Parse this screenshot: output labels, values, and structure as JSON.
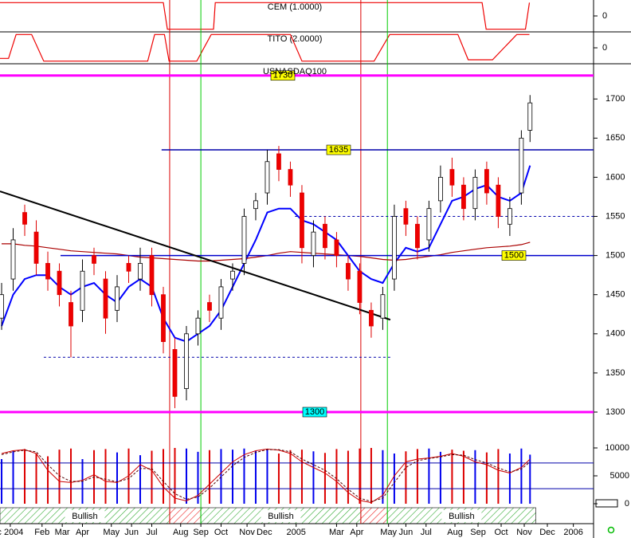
{
  "chart_data": {
    "type": "candlestick",
    "title": "USNASDAQ100",
    "xlim": [
      -0.28,
      102.5
    ],
    "xticks": [
      {
        "value": 1.5,
        "label": "c 2004"
      },
      {
        "value": 7,
        "label": "Feb"
      },
      {
        "value": 10.5,
        "label": "Mar"
      },
      {
        "value": 14,
        "label": "Apr"
      },
      {
        "value": 19,
        "label": "May"
      },
      {
        "value": 22.5,
        "label": "Jun"
      },
      {
        "value": 26,
        "label": "Jul"
      },
      {
        "value": 31,
        "label": "Aug"
      },
      {
        "value": 34.5,
        "label": "Sep"
      },
      {
        "value": 38,
        "label": "Oct"
      },
      {
        "value": 42.5,
        "label": "Nov"
      },
      {
        "value": 45.5,
        "label": "Dec"
      },
      {
        "value": 51,
        "label": "2005"
      },
      {
        "value": 58,
        "label": "Mar"
      },
      {
        "value": 61.5,
        "label": "Apr"
      },
      {
        "value": 67,
        "label": "May"
      },
      {
        "value": 70,
        "label": "Jun"
      },
      {
        "value": 73.5,
        "label": "Jul"
      },
      {
        "value": 78.5,
        "label": "Aug"
      },
      {
        "value": 82.5,
        "label": "Sep"
      },
      {
        "value": 86.5,
        "label": "Oct"
      },
      {
        "value": 90.5,
        "label": "Nov"
      },
      {
        "value": 94.5,
        "label": "Dec"
      },
      {
        "value": 99,
        "label": "2006"
      }
    ],
    "ylim": [
      1271.5,
      1745
    ],
    "yticks": [
      1300,
      1350,
      1400,
      1450,
      1500,
      1550,
      1600,
      1650,
      1700
    ],
    "x": [
      0,
      2,
      4,
      6,
      8,
      10,
      12,
      14,
      16,
      18,
      20,
      22,
      24,
      26,
      28,
      30,
      32,
      34,
      36,
      38,
      40,
      42,
      44,
      46,
      48,
      50,
      52,
      54,
      56,
      58,
      60,
      62,
      64,
      66,
      68,
      70,
      72,
      74,
      76,
      78,
      80,
      82,
      84,
      86,
      88,
      90,
      91.5
    ],
    "open": [
      1420,
      1470,
      1555,
      1530,
      1490,
      1480,
      1440,
      1430,
      1500,
      1470,
      1430,
      1490,
      1470,
      1500,
      1450,
      1380,
      1330,
      1400,
      1440,
      1420,
      1470,
      1490,
      1560,
      1580,
      1630,
      1610,
      1580,
      1500,
      1540,
      1520,
      1490,
      1480,
      1430,
      1420,
      1470,
      1560,
      1540,
      1520,
      1570,
      1610,
      1590,
      1560,
      1610,
      1590,
      1540,
      1580,
      1660
    ],
    "high": [
      1465,
      1535,
      1565,
      1545,
      1505,
      1490,
      1455,
      1495,
      1510,
      1480,
      1475,
      1500,
      1510,
      1510,
      1460,
      1395,
      1410,
      1430,
      1450,
      1470,
      1490,
      1560,
      1580,
      1635,
      1640,
      1620,
      1590,
      1545,
      1550,
      1530,
      1500,
      1490,
      1440,
      1460,
      1565,
      1570,
      1550,
      1570,
      1615,
      1625,
      1600,
      1610,
      1620,
      1600,
      1575,
      1660,
      1705
    ],
    "low": [
      1405,
      1455,
      1525,
      1475,
      1455,
      1435,
      1370,
      1415,
      1475,
      1400,
      1415,
      1465,
      1455,
      1435,
      1375,
      1305,
      1315,
      1385,
      1415,
      1405,
      1455,
      1475,
      1545,
      1565,
      1595,
      1575,
      1490,
      1485,
      1495,
      1485,
      1455,
      1425,
      1395,
      1405,
      1455,
      1525,
      1495,
      1505,
      1555,
      1575,
      1545,
      1545,
      1565,
      1535,
      1525,
      1565,
      1645
    ],
    "close": [
      1450,
      1520,
      1540,
      1490,
      1470,
      1450,
      1410,
      1480,
      1490,
      1420,
      1460,
      1480,
      1490,
      1450,
      1390,
      1320,
      1400,
      1420,
      1430,
      1460,
      1480,
      1550,
      1570,
      1620,
      1610,
      1590,
      1510,
      1530,
      1510,
      1500,
      1470,
      1440,
      1410,
      1450,
      1550,
      1540,
      1510,
      1560,
      1600,
      1590,
      1560,
      1600,
      1580,
      1550,
      1560,
      1650,
      1695
    ],
    "moving_averages": [
      {
        "color": "#0000ff",
        "values": [
          1410,
          1450,
          1470,
          1475,
          1475,
          1460,
          1450,
          1460,
          1465,
          1450,
          1440,
          1460,
          1470,
          1460,
          1420,
          1395,
          1390,
          1400,
          1410,
          1430,
          1460,
          1490,
          1520,
          1555,
          1560,
          1560,
          1545,
          1540,
          1530,
          1520,
          1500,
          1480,
          1470,
          1465,
          1490,
          1510,
          1505,
          1510,
          1540,
          1570,
          1575,
          1585,
          1590,
          1575,
          1570,
          1580,
          1615
        ]
      },
      {
        "color": "#aa0000",
        "values": [
          1515,
          1515,
          1513,
          1512,
          1510,
          1508,
          1506,
          1505,
          1504,
          1503,
          1502,
          1500,
          1498,
          1497,
          1496,
          1495,
          1494,
          1493,
          1493,
          1494,
          1495,
          1496,
          1498,
          1500,
          1503,
          1505,
          1504,
          1503,
          1502,
          1501,
          1500,
          1499,
          1497,
          1495,
          1494,
          1495,
          1497,
          1499,
          1501,
          1504,
          1506,
          1508,
          1510,
          1511,
          1512,
          1514,
          1517
        ]
      }
    ],
    "levels": [
      {
        "value": 1730,
        "label": "1730",
        "color": "#ff00ff",
        "from": -0.28
      },
      {
        "value": 1635,
        "label": "1635",
        "color": "#0000aa",
        "from": 27.7
      },
      {
        "value": 1500,
        "label": "1500",
        "color": "#0000cc",
        "from": 10.2
      },
      {
        "value": 1300,
        "label": "1300",
        "color": "#ff00ff",
        "from": -0.28
      }
    ],
    "dashed_levels": [
      {
        "value": 1550,
        "from": 50.8,
        "to": 102.5
      },
      {
        "value": 1370,
        "from": 7.3,
        "to": 67.3
      }
    ],
    "trendline": {
      "from": [
        -0.28,
        1582
      ],
      "to": [
        67.3,
        1418
      ]
    },
    "red_markers": [
      29.1,
      62.2
    ],
    "green_markers": [
      34.5,
      66.8
    ],
    "volume": {
      "ylim": [
        -714,
        12429
      ],
      "yticks": [
        0,
        5000,
        10000
      ],
      "ref_lines": [
        7300,
        2700
      ],
      "values": [
        8000,
        9500,
        9800,
        9000,
        8500,
        9700,
        9900,
        8000,
        9600,
        9800,
        9200,
        9900,
        8700,
        9500,
        9800,
        10000,
        9900,
        9300,
        9600,
        9800,
        9700,
        9900,
        9500,
        9800,
        9000,
        9600,
        9700,
        9400,
        9100,
        9800,
        9500,
        9900,
        10000,
        9600,
        9000,
        9400,
        9800,
        9900,
        9300,
        9700,
        9500,
        9600,
        9200,
        9800,
        9000,
        9900,
        8800
      ],
      "oscillator": [
        9000,
        9500,
        9700,
        9000,
        6000,
        4000,
        3800,
        4200,
        5200,
        4000,
        3800,
        5000,
        7000,
        6000,
        3000,
        1000,
        500,
        1500,
        3500,
        5500,
        7500,
        8800,
        9500,
        9800,
        9600,
        9000,
        7500,
        6500,
        5500,
        4000,
        2000,
        600,
        200,
        1500,
        5000,
        7500,
        8000,
        8200,
        8500,
        9000,
        8500,
        7500,
        7000,
        6000,
        5500,
        6500,
        8000
      ],
      "signal": [
        8800,
        9300,
        9600,
        9300,
        7000,
        5000,
        4000,
        4000,
        4800,
        4400,
        3900,
        4500,
        6300,
        6300,
        4000,
        1800,
        800,
        1200,
        2800,
        4800,
        6800,
        8300,
        9200,
        9700,
        9700,
        9300,
        8000,
        7000,
        6000,
        4500,
        2600,
        1000,
        400,
        1000,
        3800,
        6500,
        7700,
        8100,
        8400,
        8800,
        8700,
        7900,
        7300,
        6400,
        5700,
        6200,
        7500
      ]
    },
    "indicators": [
      {
        "title": "CEM (1.0000)",
        "ylim": [
          -1.2,
          1.2
        ],
        "yticks": [
          0
        ],
        "x": [
          -0.28,
          28,
          28.7,
          36.7,
          37,
          83.2,
          83.9,
          90.7,
          91.4
        ],
        "values": [
          1,
          1,
          -1,
          -1,
          1,
          1,
          -1,
          -1,
          1
        ]
      },
      {
        "title": "TITO (2.0000)",
        "ylim": [
          -1.2,
          1.2
        ],
        "yticks": [
          0
        ],
        "x": [
          -0.28,
          1.2,
          2.5,
          5.2,
          7.3,
          25.3,
          26.5,
          28.2,
          29,
          33.8,
          36.3,
          50,
          52,
          62,
          64.5,
          67.2,
          79,
          80.8,
          85,
          89.2,
          91.4
        ],
        "values": [
          -0.8,
          -0.8,
          1,
          1,
          -1,
          -1,
          1,
          1,
          -1,
          -1,
          1,
          1,
          -1,
          -1,
          -1,
          1,
          1,
          -0.9,
          -0.9,
          1,
          1
        ]
      }
    ],
    "bands": [
      {
        "label": "Bullish",
        "from": -0.28,
        "to": 29.1
      },
      {
        "from": 29.1,
        "to": 34.5
      },
      {
        "label": "Bullish",
        "from": 34.5,
        "to": 62.2
      },
      {
        "from": 62.2,
        "to": 66.8
      },
      {
        "label": "Bullish",
        "from": 66.8,
        "to": 92.5
      }
    ]
  }
}
